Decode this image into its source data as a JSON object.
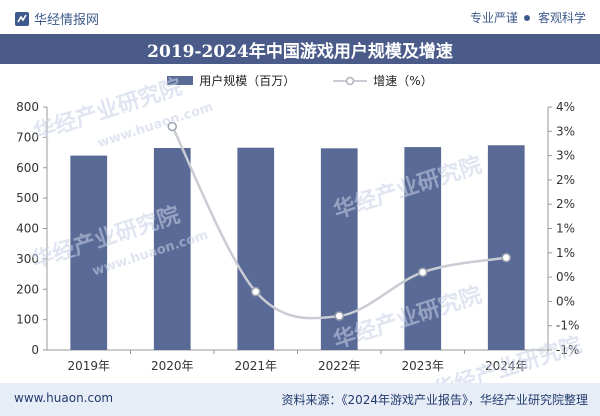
{
  "header": {
    "brand": "华经情报网",
    "tag1": "专业严谨",
    "tag2": "客观科学"
  },
  "watermark": {
    "cn": "华经产业研究院",
    "en": "www.huaon.com"
  },
  "footer": {
    "url": "www.huaon.com",
    "source": "资料来源：《2024年游戏产业报告》，华经产业研究院整理"
  },
  "colors": {
    "bar": "#5a6a96",
    "line": "#c9ccd3",
    "title_bg": "#4a5b8a"
  },
  "chart_data": {
    "type": "bar",
    "title": "2019-2024年中国游戏用户规模及增速",
    "categories": [
      "2019年",
      "2020年",
      "2021年",
      "2022年",
      "2023年",
      "2024年"
    ],
    "series": [
      {
        "name": "用户规模（百万）",
        "type": "bar",
        "axis": "left",
        "values": [
          640,
          665,
          666,
          664,
          668,
          674
        ]
      },
      {
        "name": "增速（%）",
        "type": "line",
        "axis": "right",
        "values": [
          null,
          3.6,
          0.2,
          -0.3,
          0.6,
          0.9
        ]
      }
    ],
    "ylim_left": [
      0,
      800
    ],
    "yticks_left": [
      "0",
      "100",
      "200",
      "300",
      "400",
      "500",
      "600",
      "700",
      "800"
    ],
    "ylim_right": [
      -1,
      4
    ],
    "yticks_right": [
      "-1%",
      "-1%",
      "0%",
      "0%",
      "1%",
      "1%",
      "2%",
      "2%",
      "3%",
      "3%",
      "4%"
    ],
    "legend_position": "top-center"
  }
}
